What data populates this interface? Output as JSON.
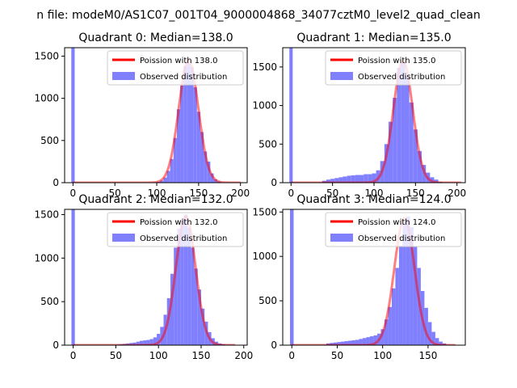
{
  "suptitle": "n file: modeM0/AS1C07_001T04_9000004868_34077cztM0_level2_quad_clean",
  "colors": {
    "curve": "#ff0000",
    "bars": "#8080ff",
    "axis": "#000000"
  },
  "chart_data": [
    {
      "type": "bar",
      "title": "Quadrant 0: Median=138.0",
      "median": 138.0,
      "xlim": [
        -10,
        208
      ],
      "ylim": [
        0,
        1600
      ],
      "xticks": [
        0,
        50,
        100,
        150,
        200
      ],
      "yticks": [
        0,
        500,
        1000,
        1500
      ],
      "legend": {
        "position": "top-right",
        "entries": [
          "Poission with 138.0",
          "Observed distribution"
        ]
      },
      "spike": {
        "x": 0,
        "value": 1600
      },
      "hist": {
        "x": [
          102,
          106,
          110,
          114,
          118,
          122,
          126,
          130,
          134,
          138,
          142,
          146,
          150,
          154,
          158,
          162,
          166,
          170,
          174,
          178
        ],
        "values": [
          10,
          25,
          60,
          140,
          280,
          530,
          870,
          1150,
          1380,
          1420,
          1370,
          1130,
          840,
          600,
          370,
          250,
          110,
          40,
          15,
          5
        ]
      },
      "poisson": {
        "lambda": 138.0,
        "x_range": [
          0,
          200
        ],
        "peak": 1450
      }
    },
    {
      "type": "bar",
      "title": "Quadrant 1: Median=135.0",
      "median": 135.0,
      "xlim": [
        -10,
        210
      ],
      "ylim": [
        0,
        1750
      ],
      "xticks": [
        0,
        50,
        100,
        150,
        200
      ],
      "yticks": [
        0,
        500,
        1000,
        1500
      ],
      "legend": {
        "position": "top-right",
        "entries": [
          "Poission with 135.0",
          "Observed distribution"
        ]
      },
      "spike": {
        "x": 0,
        "value": 1750
      },
      "hist": {
        "x": [
          40,
          45,
          50,
          55,
          60,
          65,
          70,
          75,
          80,
          85,
          90,
          95,
          100,
          105,
          110,
          115,
          120,
          125,
          130,
          135,
          140,
          145,
          150,
          155,
          160,
          165,
          170,
          175,
          180
        ],
        "values": [
          25,
          40,
          50,
          60,
          70,
          80,
          90,
          95,
          100,
          100,
          110,
          110,
          120,
          160,
          280,
          500,
          790,
          1100,
          1490,
          1560,
          1380,
          1040,
          690,
          410,
          230,
          130,
          70,
          40,
          10
        ]
      },
      "poisson": {
        "lambda": 135.0,
        "x_range": [
          0,
          205
        ],
        "peak": 1580
      }
    },
    {
      "type": "bar",
      "title": "Quadrant 2: Median=132.0",
      "median": 132.0,
      "xlim": [
        -10,
        204
      ],
      "ylim": [
        0,
        1560
      ],
      "xticks": [
        0,
        50,
        100,
        150,
        200
      ],
      "yticks": [
        0,
        500,
        1000,
        1500
      ],
      "legend": {
        "position": "top-right",
        "entries": [
          "Poission with 132.0",
          "Observed distribution"
        ]
      },
      "spike": {
        "x": 0,
        "value": 1560
      },
      "hist": {
        "x": [
          56,
          60,
          64,
          68,
          72,
          76,
          80,
          84,
          88,
          92,
          96,
          100,
          104,
          108,
          112,
          116,
          120,
          124,
          128,
          132,
          136,
          140,
          144,
          148,
          152,
          156,
          160,
          164,
          168,
          172,
          176,
          180,
          184,
          188
        ],
        "values": [
          10,
          15,
          20,
          25,
          30,
          40,
          50,
          55,
          60,
          70,
          90,
          130,
          210,
          350,
          540,
          820,
          1120,
          1340,
          1450,
          1500,
          1350,
          1120,
          880,
          640,
          420,
          270,
          150,
          80,
          40,
          20,
          10,
          5,
          5,
          5
        ]
      },
      "poisson": {
        "lambda": 132.0,
        "x_range": [
          0,
          190
        ],
        "peak": 1480
      }
    },
    {
      "type": "bar",
      "title": "Quadrant 3: Median=124.0",
      "median": 124.0,
      "xlim": [
        -10,
        191
      ],
      "ylim": [
        0,
        1530
      ],
      "xticks": [
        0,
        50,
        100,
        150
      ],
      "yticks": [
        0,
        500,
        1000,
        1500
      ],
      "legend": {
        "position": "top-right",
        "entries": [
          "Poission with 124.0",
          "Observed distribution"
        ]
      },
      "spike": {
        "x": 0,
        "value": 1530
      },
      "hist": {
        "x": [
          40,
          44,
          48,
          52,
          56,
          60,
          64,
          68,
          72,
          76,
          80,
          84,
          88,
          92,
          96,
          100,
          104,
          108,
          112,
          116,
          120,
          124,
          128,
          132,
          136,
          140,
          144,
          148,
          152,
          156,
          160,
          164,
          168,
          172
        ],
        "values": [
          20,
          25,
          30,
          35,
          40,
          45,
          50,
          55,
          60,
          70,
          80,
          90,
          100,
          110,
          130,
          180,
          290,
          430,
          640,
          870,
          1120,
          1390,
          1450,
          1330,
          1110,
          870,
          610,
          420,
          260,
          150,
          80,
          40,
          20,
          5
        ]
      },
      "poisson": {
        "lambda": 124.0,
        "x_range": [
          0,
          180
        ],
        "peak": 1430
      }
    }
  ]
}
